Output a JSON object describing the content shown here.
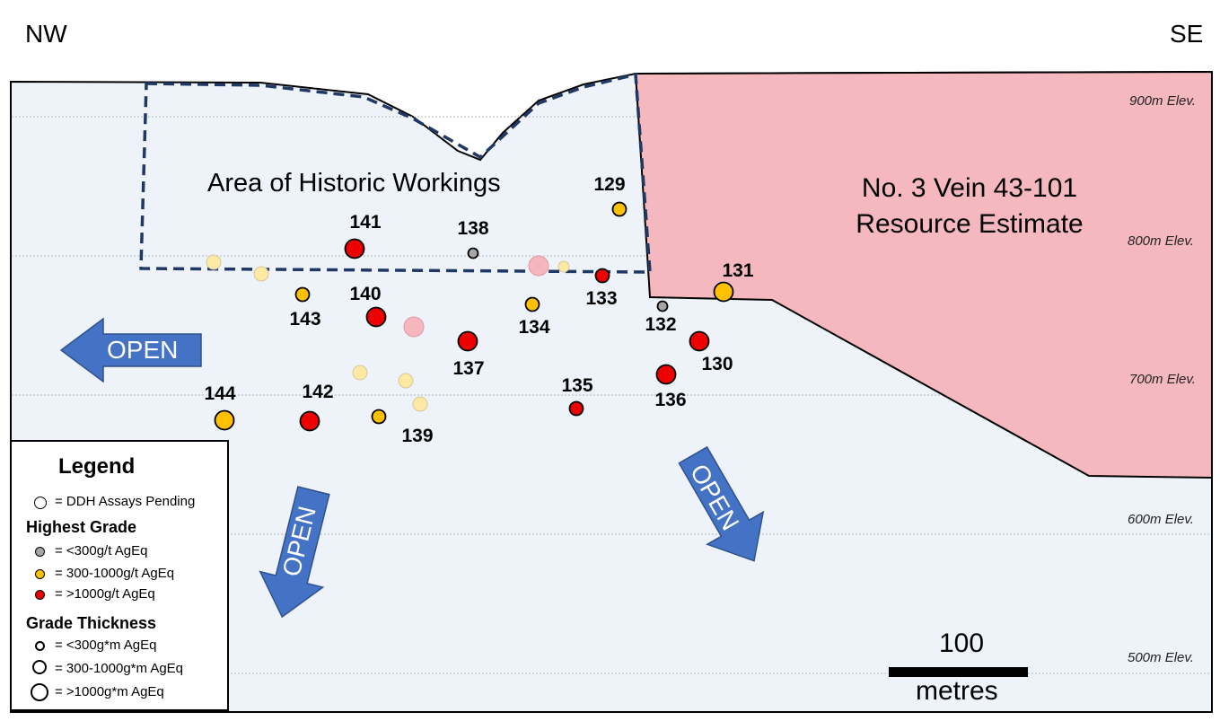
{
  "directions": {
    "left": "NW",
    "right": "SE"
  },
  "elevations": [
    "900m Elev.",
    "800m Elev.",
    "700m Elev.",
    "600m Elev.",
    "500m Elev."
  ],
  "areas": {
    "historic": "Area of Historic Workings",
    "resource_line1": "No. 3 Vein 43-101",
    "resource_line2": "Resource Estimate"
  },
  "open_label": "OPEN",
  "holes": [
    "129",
    "130",
    "131",
    "132",
    "133",
    "134",
    "135",
    "136",
    "137",
    "138",
    "139",
    "140",
    "141",
    "142",
    "143",
    "144"
  ],
  "legend": {
    "title": "Legend",
    "pending": "= DDH Assays Pending",
    "grade_heading": "Highest Grade",
    "grade_low": "= <300g/t AgEq",
    "grade_mid": "= 300-1000g/t AgEq",
    "grade_high": "= >1000g/t AgEq",
    "thickness_heading": "Grade Thickness",
    "thick_low": "= <300g*m AgEq",
    "thick_mid": "= 300-1000g*m AgEq",
    "thick_high": "= >1000g*m AgEq"
  },
  "scale": {
    "value": "100",
    "unit": "metres"
  },
  "colors": {
    "section_fill": "#eef3fa",
    "resource_fill": "#f4b8be",
    "grade_low": "#a6a6a6",
    "grade_mid": "#ffc000",
    "grade_high": "#ee0000",
    "pending_yellow": "#fde9a4",
    "pending_pink": "#f6b6be",
    "arrow_fill": "#4472c4",
    "dash_line": "#1f3864"
  }
}
